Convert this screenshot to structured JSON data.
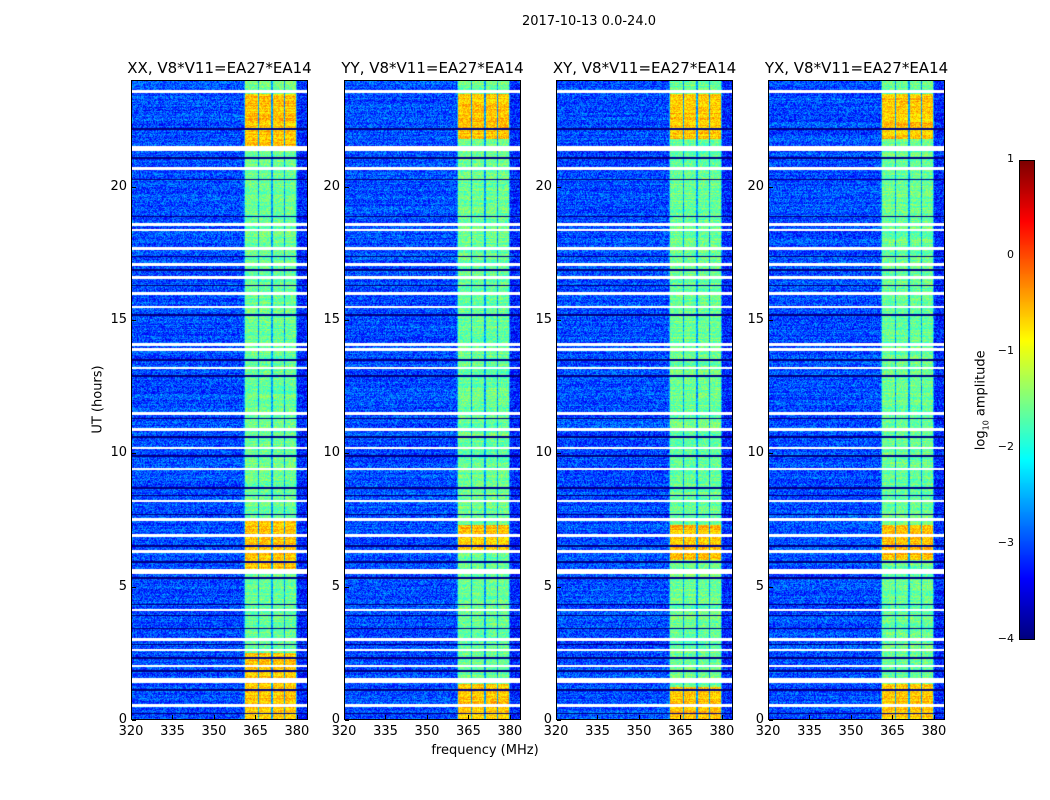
{
  "chart_data": {
    "type": "heatmap",
    "title": "2017-10-13 0.0-24.0",
    "xlabel": "frequency (MHz)",
    "ylabel": "UT (hours)",
    "xlim": [
      320,
      384
    ],
    "ylim": [
      0,
      24
    ],
    "xticks": [
      "320",
      "335",
      "350",
      "365",
      "380"
    ],
    "xtick_values": [
      320,
      335,
      350,
      365,
      380
    ],
    "yticks": [
      "0",
      "5",
      "10",
      "15",
      "20"
    ],
    "ytick_values": [
      0,
      5,
      10,
      15,
      20
    ],
    "panels": [
      {
        "title": "XX, V8*V11=EA27*EA14",
        "strong_hours": [
          [
            5.5,
            7.5
          ],
          [
            0,
            2.5
          ],
          [
            21.5,
            23.5
          ]
        ]
      },
      {
        "title": "YY, V8*V11=EA27*EA14",
        "strong_hours": [
          [
            6.3,
            7.3
          ],
          [
            0,
            1.3
          ],
          [
            21.8,
            23.5
          ]
        ]
      },
      {
        "title": "XY, V8*V11=EA27*EA14",
        "strong_hours": [
          [
            6,
            7.3
          ],
          [
            0,
            1.2
          ],
          [
            21.8,
            23.5
          ]
        ]
      },
      {
        "title": "YX, V8*V11=EA27*EA14",
        "strong_hours": [
          [
            6,
            7.3
          ],
          [
            0,
            1.3
          ],
          [
            21.8,
            23.5
          ]
        ]
      }
    ],
    "band_channels_mhz": [
      [
        361.5,
        366
      ],
      [
        366.5,
        371
      ],
      [
        371.5,
        375.5
      ],
      [
        376,
        380
      ]
    ],
    "background_log10_amplitude": -3,
    "band_log10_amplitude": -1.6,
    "strong_log10_amplitude": -0.6,
    "flagged_hours": [
      23.6,
      21.5,
      21.4,
      20.7,
      18.6,
      18.4,
      17.7,
      17.1,
      16.6,
      16.0,
      15.5,
      14.1,
      13.9,
      13.2,
      11.5,
      10.9,
      10.2,
      9.4,
      8.2,
      7.5,
      6.9,
      6.3,
      5.6,
      5.5,
      4.1,
      3.0,
      2.6,
      2.0,
      1.5,
      1.4,
      0.5
    ],
    "dark_hours": [
      22.2,
      21.1,
      20.3,
      18.9,
      17.4,
      16.9,
      16.3,
      15.2,
      13.5,
      12.9,
      11.3,
      10.6,
      9.9,
      8.7,
      8.4,
      7.7,
      6.5,
      5.9,
      5.3,
      4.3,
      3.9,
      3.4,
      2.8,
      2.3,
      1.8,
      1.1,
      0.2
    ],
    "colorbar": {
      "label": "log10 amplitude",
      "label_base": "log",
      "label_sub": "10",
      "label_rest": " amplitude",
      "range": [
        -4,
        1
      ],
      "ticks": [
        "−4",
        "−3",
        "−2",
        "−1",
        "0",
        "1"
      ],
      "tick_values": [
        -4,
        -3,
        -2,
        -1,
        0,
        1
      ],
      "colormap": "jet"
    }
  }
}
